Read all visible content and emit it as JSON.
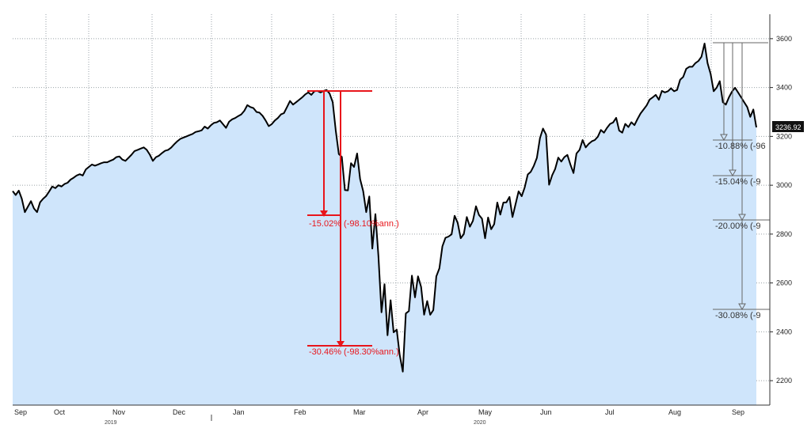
{
  "chart_data": {
    "type": "area",
    "title": "",
    "xlabel": "",
    "ylabel": "",
    "x_tick_labels": [
      "Sep",
      "Oct",
      "Nov",
      "Dec",
      "Jan",
      "Feb",
      "Mar",
      "Apr",
      "May",
      "Jun",
      "Jul",
      "Aug",
      "Sep"
    ],
    "year_labels": [
      "2019",
      "2020"
    ],
    "y_ticks": [
      2200,
      2400,
      2600,
      2800,
      3000,
      3200,
      3400,
      3600
    ],
    "ylim": [
      2100,
      3700
    ],
    "grid": true,
    "series": [
      {
        "values": [
          2976,
          2960,
          2978,
          2945,
          2890,
          2912,
          2935,
          2905,
          2890,
          2930,
          2945,
          2956,
          2975,
          2995,
          2988,
          3000,
          2995,
          3005,
          3010,
          3023,
          3031,
          3040,
          3045,
          3040,
          3065,
          3075,
          3085,
          3080,
          3085,
          3090,
          3094,
          3094,
          3100,
          3105,
          3115,
          3118,
          3105,
          3100,
          3112,
          3125,
          3140,
          3145,
          3150,
          3155,
          3145,
          3125,
          3100,
          3115,
          3121,
          3132,
          3141,
          3145,
          3154,
          3168,
          3180,
          3190,
          3195,
          3200,
          3205,
          3210,
          3218,
          3221,
          3225,
          3240,
          3232,
          3245,
          3255,
          3258,
          3265,
          3250,
          3235,
          3260,
          3270,
          3275,
          3283,
          3290,
          3305,
          3328,
          3320,
          3316,
          3300,
          3297,
          3284,
          3265,
          3242,
          3250,
          3265,
          3275,
          3290,
          3295,
          3320,
          3345,
          3330,
          3340,
          3350,
          3360,
          3372,
          3380,
          3370,
          3385,
          3386,
          3380,
          3386,
          3390,
          3375,
          3340,
          3225,
          3128,
          3116,
          2980,
          2979,
          3090,
          3075,
          3130,
          3025,
          2975,
          2890,
          2954,
          2741,
          2882,
          2711,
          2480,
          2595,
          2386,
          2529,
          2398,
          2409,
          2305,
          2237,
          2475,
          2485,
          2630,
          2541,
          2627,
          2584,
          2470,
          2526,
          2470,
          2489,
          2627,
          2660,
          2750,
          2785,
          2790,
          2799,
          2875,
          2846,
          2783,
          2800,
          2870,
          2830,
          2854,
          2914,
          2878,
          2863,
          2783,
          2868,
          2820,
          2841,
          2929,
          2880,
          2929,
          2930,
          2952,
          2870,
          2923,
          2975,
          2955,
          2991,
          3044,
          3055,
          3080,
          3112,
          3193,
          3232,
          3207,
          3002,
          3041,
          3067,
          3113,
          3097,
          3115,
          3124,
          3084,
          3050,
          3130,
          3145,
          3185,
          3155,
          3169,
          3180,
          3185,
          3199,
          3226,
          3215,
          3235,
          3251,
          3257,
          3276,
          3224,
          3215,
          3251,
          3238,
          3258,
          3246,
          3271,
          3294,
          3310,
          3327,
          3351,
          3360,
          3370,
          3350,
          3386,
          3380,
          3385,
          3397,
          3385,
          3390,
          3432,
          3443,
          3477,
          3485,
          3485,
          3500,
          3509,
          3526,
          3580,
          3500,
          3455,
          3385,
          3400,
          3426,
          3340,
          3330,
          3360,
          3383,
          3399,
          3380,
          3360,
          3340,
          3320,
          3280,
          3310,
          3237
        ]
      }
    ],
    "last_value_label": "3236.92",
    "annotations_red": [
      "-15.02% (-98.10%ann.)",
      "-30.46% (-98.30%ann.)"
    ],
    "annotations_gray": [
      "-10.88% (-96",
      "-15.04% (-9",
      "-20.00% (-9",
      "-30.08% (-9"
    ],
    "colors": {
      "area_fill": "#cfe5fb",
      "line": "#000000",
      "annotation_red": "#e8151b",
      "annotation_gray": "#666666",
      "grid": "#9aa2a8",
      "last_label_bg": "#111111"
    }
  }
}
